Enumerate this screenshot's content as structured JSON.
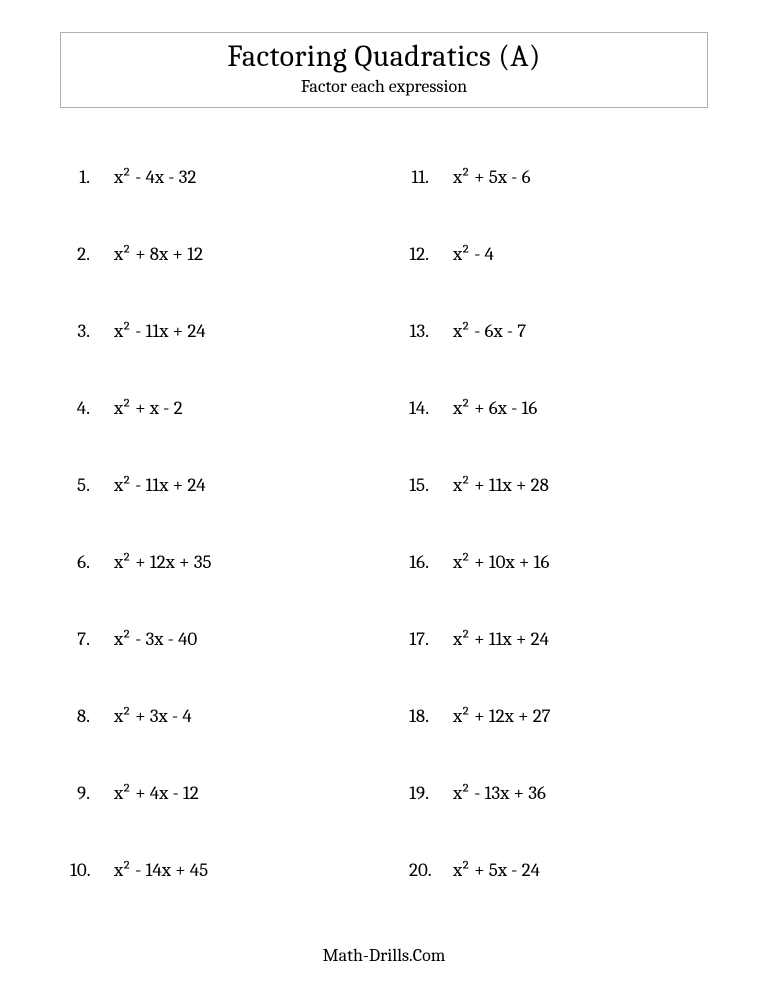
{
  "header": {
    "title": "Factoring Quadratics (A)",
    "subtitle": "Factor each expression"
  },
  "leftColumn": [
    {
      "n": "1.",
      "expr": "x² - 4x - 32"
    },
    {
      "n": "2.",
      "expr": "x² + 8x + 12"
    },
    {
      "n": "3.",
      "expr": "x² - 11x + 24"
    },
    {
      "n": "4.",
      "expr": "x² + x - 2"
    },
    {
      "n": "5.",
      "expr": "x² - 11x + 24"
    },
    {
      "n": "6.",
      "expr": "x² + 12x + 35"
    },
    {
      "n": "7.",
      "expr": "x² - 3x - 40"
    },
    {
      "n": "8.",
      "expr": "x² + 3x - 4"
    },
    {
      "n": "9.",
      "expr": "x² + 4x - 12"
    },
    {
      "n": "10.",
      "expr": "x² - 14x + 45"
    }
  ],
  "rightColumn": [
    {
      "n": "11.",
      "expr": "x² + 5x - 6"
    },
    {
      "n": "12.",
      "expr": "x² - 4"
    },
    {
      "n": "13.",
      "expr": "x² - 6x - 7"
    },
    {
      "n": "14.",
      "expr": "x² + 6x - 16"
    },
    {
      "n": "15.",
      "expr": "x² + 11x + 28"
    },
    {
      "n": "16.",
      "expr": "x² + 10x + 16"
    },
    {
      "n": "17.",
      "expr": "x² + 11x + 24"
    },
    {
      "n": "18.",
      "expr": "x² + 12x + 27"
    },
    {
      "n": "19.",
      "expr": "x² - 13x + 36"
    },
    {
      "n": "20.",
      "expr": "x² + 5x - 24"
    }
  ],
  "footer": "Math-Drills.Com"
}
